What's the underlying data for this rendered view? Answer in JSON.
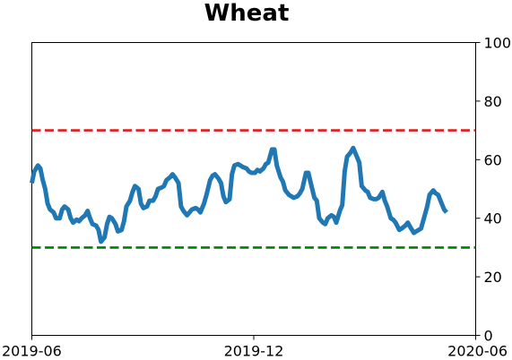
{
  "chart_data": {
    "type": "line",
    "title": "Wheat",
    "xlabel": "",
    "ylabel": "",
    "x_range": [
      "2019-06",
      "2020-06"
    ],
    "x_ticks": [
      "2019-06",
      "2019-12",
      "2020-06"
    ],
    "y_axis_side": "right",
    "ylim": [
      0,
      100
    ],
    "y_ticks": [
      0,
      20,
      40,
      60,
      80,
      100
    ],
    "grid": false,
    "reference_lines": [
      {
        "value": 70,
        "color": "#e31a1c",
        "style": "dashed"
      },
      {
        "value": 30,
        "color": "#008000",
        "style": "dashed"
      }
    ],
    "series": [
      {
        "color": "#1f77b4",
        "points": [
          [
            "2019-06-01",
            52
          ],
          [
            "2019-06-03",
            56
          ],
          [
            "2019-06-06",
            58
          ],
          [
            "2019-06-08",
            57
          ],
          [
            "2019-06-10",
            53
          ],
          [
            "2019-06-12",
            50
          ],
          [
            "2019-06-14",
            45
          ],
          [
            "2019-06-16",
            43
          ],
          [
            "2019-06-19",
            42
          ],
          [
            "2019-06-21",
            40
          ],
          [
            "2019-06-24",
            40
          ],
          [
            "2019-06-26",
            43
          ],
          [
            "2019-06-28",
            44
          ],
          [
            "2019-07-01",
            43
          ],
          [
            "2019-07-03",
            40
          ],
          [
            "2019-07-05",
            38.5
          ],
          [
            "2019-07-08",
            39.5
          ],
          [
            "2019-07-10",
            39
          ],
          [
            "2019-07-12",
            40
          ],
          [
            "2019-07-15",
            41
          ],
          [
            "2019-07-17",
            42.5
          ],
          [
            "2019-07-19",
            40
          ],
          [
            "2019-07-21",
            38
          ],
          [
            "2019-07-24",
            37.5
          ],
          [
            "2019-07-26",
            36
          ],
          [
            "2019-07-28",
            32
          ],
          [
            "2019-07-31",
            33.5
          ],
          [
            "2019-08-02",
            38
          ],
          [
            "2019-08-04",
            40.5
          ],
          [
            "2019-08-06",
            40
          ],
          [
            "2019-08-09",
            38
          ],
          [
            "2019-08-11",
            35.5
          ],
          [
            "2019-08-14",
            36
          ],
          [
            "2019-08-16",
            39
          ],
          [
            "2019-08-18",
            44
          ],
          [
            "2019-08-21",
            46
          ],
          [
            "2019-08-23",
            49
          ],
          [
            "2019-08-25",
            51
          ],
          [
            "2019-08-28",
            50
          ],
          [
            "2019-08-30",
            45
          ],
          [
            "2019-09-01",
            43.5
          ],
          [
            "2019-09-04",
            44
          ],
          [
            "2019-09-06",
            46
          ],
          [
            "2019-09-09",
            46
          ],
          [
            "2019-09-11",
            47.5
          ],
          [
            "2019-09-13",
            50
          ],
          [
            "2019-09-16",
            50.5
          ],
          [
            "2019-09-18",
            51
          ],
          [
            "2019-09-20",
            53
          ],
          [
            "2019-09-23",
            54
          ],
          [
            "2019-09-25",
            55
          ],
          [
            "2019-09-27",
            54
          ],
          [
            "2019-09-30",
            52
          ],
          [
            "2019-10-02",
            44
          ],
          [
            "2019-10-04",
            42.5
          ],
          [
            "2019-10-07",
            41
          ],
          [
            "2019-10-09",
            42
          ],
          [
            "2019-10-11",
            43
          ],
          [
            "2019-10-14",
            43.5
          ],
          [
            "2019-10-16",
            43
          ],
          [
            "2019-10-18",
            42
          ],
          [
            "2019-10-21",
            45
          ],
          [
            "2019-10-23",
            48
          ],
          [
            "2019-10-26",
            53
          ],
          [
            "2019-10-28",
            54.5
          ],
          [
            "2019-10-30",
            55
          ],
          [
            "2019-11-02",
            53.5
          ],
          [
            "2019-11-04",
            52
          ],
          [
            "2019-11-06",
            47.5
          ],
          [
            "2019-11-08",
            45.5
          ],
          [
            "2019-11-11",
            46.5
          ],
          [
            "2019-11-13",
            55
          ],
          [
            "2019-11-15",
            58
          ],
          [
            "2019-11-18",
            58.5
          ],
          [
            "2019-11-20",
            58
          ],
          [
            "2019-11-22",
            57.5
          ],
          [
            "2019-11-25",
            57
          ],
          [
            "2019-11-27",
            56
          ],
          [
            "2019-11-29",
            55.5
          ],
          [
            "2019-12-02",
            55.5
          ],
          [
            "2019-12-04",
            56.5
          ],
          [
            "2019-12-06",
            56
          ],
          [
            "2019-12-09",
            57
          ],
          [
            "2019-12-11",
            58.5
          ],
          [
            "2019-12-13",
            59
          ],
          [
            "2019-12-16",
            63.5
          ],
          [
            "2019-12-18",
            63.5
          ],
          [
            "2019-12-20",
            58
          ],
          [
            "2019-12-23",
            54
          ],
          [
            "2019-12-25",
            52.5
          ],
          [
            "2019-12-27",
            49.5
          ],
          [
            "2019-12-30",
            48
          ],
          [
            "2020-01-01",
            47.5
          ],
          [
            "2020-01-03",
            47
          ],
          [
            "2020-01-06",
            47.5
          ],
          [
            "2020-01-08",
            48.5
          ],
          [
            "2020-01-10",
            50
          ],
          [
            "2020-01-13",
            55.5
          ],
          [
            "2020-01-15",
            55.5
          ],
          [
            "2020-01-17",
            52
          ],
          [
            "2020-01-20",
            47
          ],
          [
            "2020-01-22",
            46
          ],
          [
            "2020-01-24",
            40
          ],
          [
            "2020-01-27",
            38.5
          ],
          [
            "2020-01-29",
            38
          ],
          [
            "2020-01-31",
            40
          ],
          [
            "2020-02-03",
            41
          ],
          [
            "2020-02-05",
            40.5
          ],
          [
            "2020-02-07",
            38.5
          ],
          [
            "2020-02-10",
            42.5
          ],
          [
            "2020-02-12",
            44.5
          ],
          [
            "2020-02-14",
            56
          ],
          [
            "2020-02-16",
            61
          ],
          [
            "2020-02-19",
            62.5
          ],
          [
            "2020-02-21",
            64
          ],
          [
            "2020-02-24",
            61
          ],
          [
            "2020-02-26",
            59
          ],
          [
            "2020-02-28",
            51
          ],
          [
            "2020-03-02",
            49.5
          ],
          [
            "2020-03-04",
            49
          ],
          [
            "2020-03-06",
            47
          ],
          [
            "2020-03-09",
            46.5
          ],
          [
            "2020-03-11",
            46.5
          ],
          [
            "2020-03-13",
            47
          ],
          [
            "2020-03-16",
            49
          ],
          [
            "2020-03-18",
            46
          ],
          [
            "2020-03-20",
            44
          ],
          [
            "2020-03-23",
            40
          ],
          [
            "2020-03-25",
            39.5
          ],
          [
            "2020-03-27",
            38.5
          ],
          [
            "2020-03-30",
            36
          ],
          [
            "2020-04-01",
            36.5
          ],
          [
            "2020-04-04",
            37.5
          ],
          [
            "2020-04-06",
            38.5
          ],
          [
            "2020-04-08",
            37
          ],
          [
            "2020-04-11",
            35
          ],
          [
            "2020-04-13",
            35.5
          ],
          [
            "2020-04-15",
            36
          ],
          [
            "2020-04-17",
            36.5
          ],
          [
            "2020-04-20",
            41
          ],
          [
            "2020-04-22",
            44
          ],
          [
            "2020-04-24",
            48
          ],
          [
            "2020-04-27",
            49.5
          ],
          [
            "2020-04-29",
            48.5
          ],
          [
            "2020-05-01",
            48
          ],
          [
            "2020-05-04",
            45
          ],
          [
            "2020-05-06",
            43
          ],
          [
            "2020-05-08",
            42
          ]
        ]
      }
    ]
  }
}
